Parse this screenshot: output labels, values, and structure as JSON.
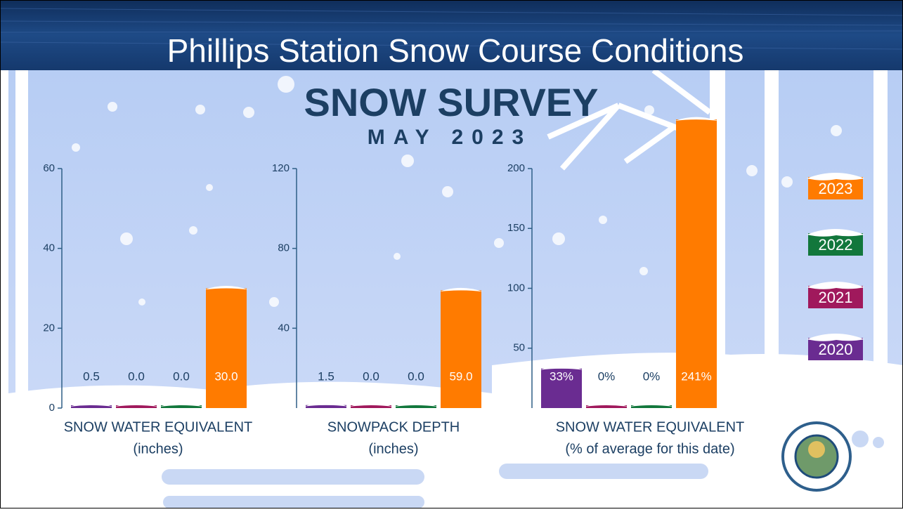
{
  "header": {
    "title": "Phillips Station Snow Course Conditions"
  },
  "infographic": {
    "heading": "SNOW SURVEY",
    "subheading": "MAY 2023"
  },
  "legend": {
    "items": [
      {
        "name": "2020",
        "color": "#6a2c91"
      },
      {
        "name": "2021",
        "color": "#a0195c"
      },
      {
        "name": "2022",
        "color": "#12773c"
      },
      {
        "name": "2023",
        "color": "#ff7b00"
      }
    ]
  },
  "chart_data": [
    {
      "type": "bar",
      "x_label": [
        "SNOW WATER EQUIVALENT",
        "(inches)"
      ],
      "values": [
        0.5,
        0.0,
        0.0,
        30.0
      ],
      "value_labels": [
        "0.5",
        "0.0",
        "0.0",
        "30.0"
      ],
      "ylim": [
        0,
        60
      ],
      "yticks": [
        0,
        20,
        40,
        60
      ]
    },
    {
      "type": "bar",
      "x_label": [
        "SNOWPACK DEPTH",
        "(inches)"
      ],
      "values": [
        1.5,
        0.0,
        0.0,
        59.0
      ],
      "value_labels": [
        "1.5",
        "0.0",
        "0.0",
        "59.0"
      ],
      "ylim": [
        0,
        120
      ],
      "yticks": [
        40,
        80,
        120
      ]
    },
    {
      "type": "bar",
      "x_label": [
        "SNOW WATER EQUIVALENT",
        "(% of average for this date)"
      ],
      "values": [
        33,
        0,
        0,
        241
      ],
      "value_labels": [
        "33%",
        "0%",
        "0%",
        "241%"
      ],
      "ylim": [
        0,
        200
      ],
      "yticks": [
        50,
        100,
        150,
        200
      ]
    }
  ]
}
